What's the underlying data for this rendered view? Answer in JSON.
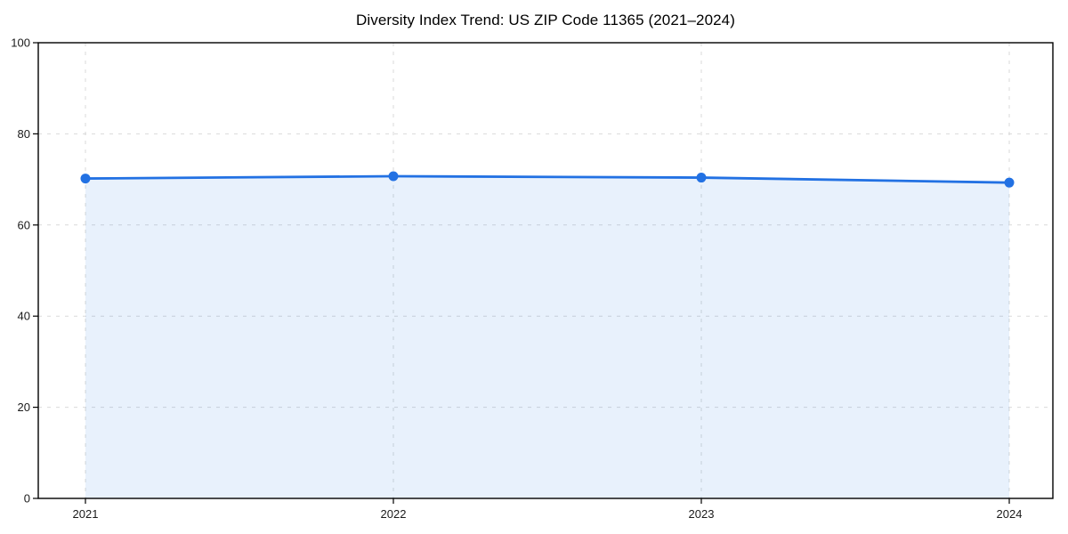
{
  "chart_data": {
    "type": "area",
    "title": "Diversity Index Trend: US ZIP Code 11365 (2021–2024)",
    "categories": [
      "2021",
      "2022",
      "2023",
      "2024"
    ],
    "series": [
      {
        "name": "Diversity Index",
        "values": [
          70.2,
          70.7,
          70.4,
          69.3
        ]
      }
    ],
    "xlabel": "",
    "ylabel": "",
    "ylim": [
      0,
      100
    ],
    "yticks": [
      0,
      20,
      40,
      60,
      80,
      100
    ],
    "grid": "dashed both axes",
    "legend": "none",
    "colors": {
      "line": "#2271e3",
      "marker": "#2271e3",
      "fill_opacity": 0.1,
      "grid": "#d9d9d9",
      "axis": "#000000",
      "tick_text": "#1a1a1a"
    }
  }
}
